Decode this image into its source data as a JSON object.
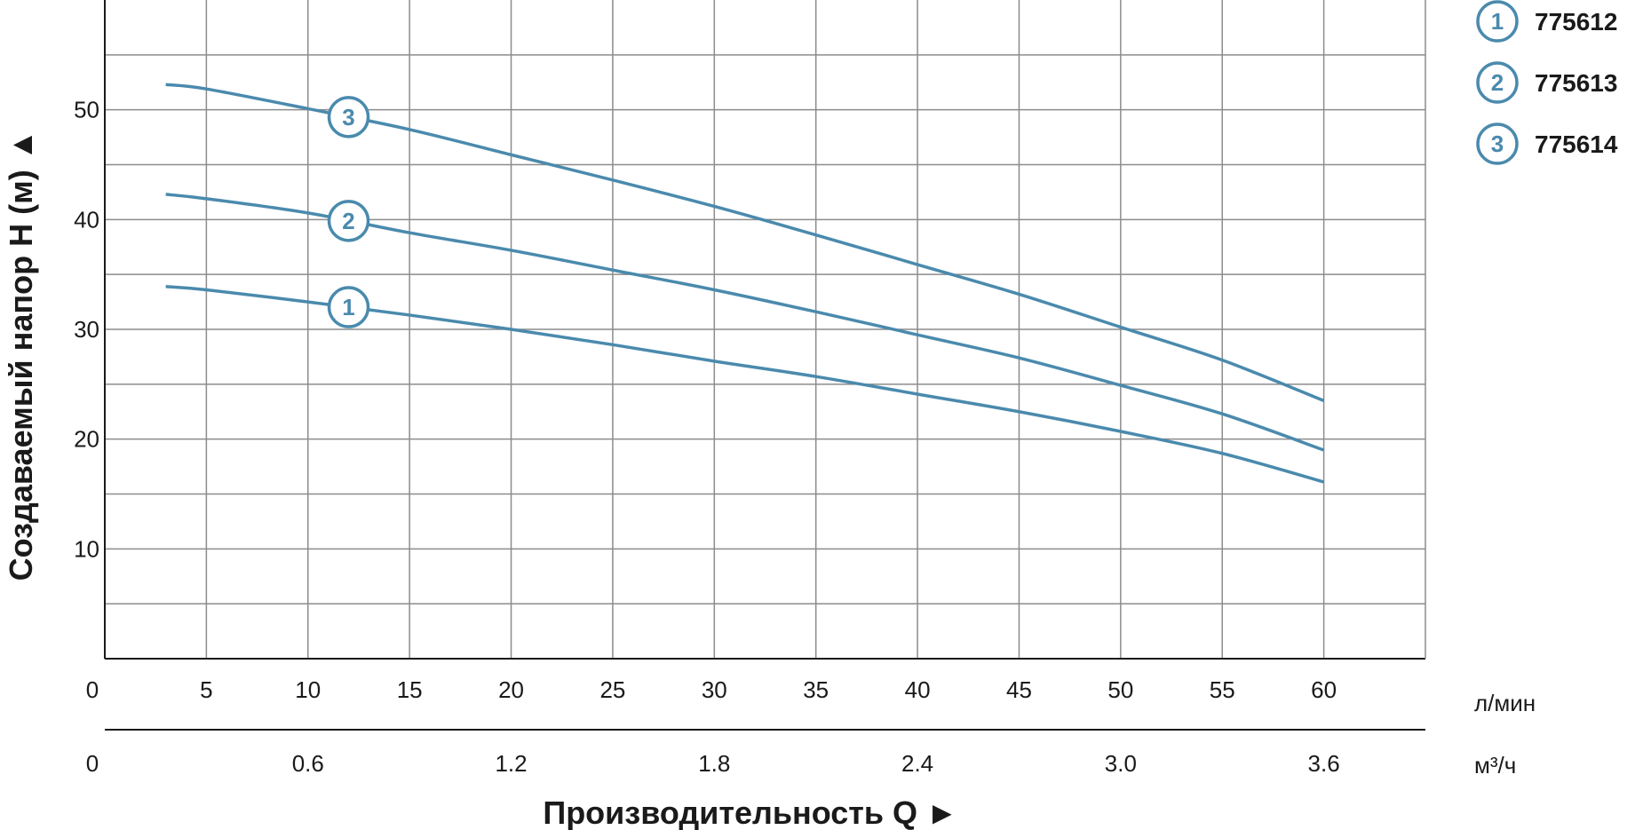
{
  "chart_data": {
    "type": "line",
    "ylabel": "Создаваемый напор H (м) ▲",
    "xlabel": "Производительность Q ►",
    "x_unit_primary": "л/мин",
    "x_unit_secondary": "м³/ч",
    "xlim": [
      0,
      65
    ],
    "ylim": [
      0,
      60
    ],
    "x_ticks": [
      0,
      5,
      10,
      15,
      20,
      25,
      30,
      35,
      40,
      45,
      50,
      55,
      60
    ],
    "x_tick_labels": [
      "0",
      "5",
      "10",
      "15",
      "20",
      "25",
      "30",
      "35",
      "40",
      "45",
      "50",
      "55",
      "60"
    ],
    "x2_ticks": [
      0,
      0.6,
      1.2,
      1.8,
      2.4,
      3.0,
      3.6
    ],
    "x2_tick_labels": [
      "0",
      "0.6",
      "1.2",
      "1.8",
      "2.4",
      "3.0",
      "3.6"
    ],
    "y_ticks": [
      10,
      20,
      30,
      40,
      50
    ],
    "y_tick_labels": [
      "10",
      "20",
      "30",
      "40",
      "50"
    ],
    "grid": true,
    "legend_position": "top-right",
    "line_color": "#4a8aad",
    "series": [
      {
        "name": "775612",
        "marker": "1",
        "marker_at": 12,
        "x": [
          3,
          5,
          10,
          15,
          20,
          25,
          30,
          35,
          40,
          45,
          50,
          55,
          60
        ],
        "y": [
          33.9,
          33.6,
          32.5,
          31.3,
          30.0,
          28.6,
          27.1,
          25.7,
          24.1,
          22.5,
          20.7,
          18.7,
          16.1
        ]
      },
      {
        "name": "775613",
        "marker": "2",
        "marker_at": 12,
        "x": [
          3,
          5,
          10,
          15,
          20,
          25,
          30,
          35,
          40,
          45,
          50,
          55,
          60
        ],
        "y": [
          42.3,
          41.9,
          40.6,
          38.8,
          37.2,
          35.4,
          33.6,
          31.6,
          29.5,
          27.4,
          24.9,
          22.3,
          19.0
        ]
      },
      {
        "name": "775614",
        "marker": "3",
        "marker_at": 12,
        "x": [
          3,
          5,
          10,
          15,
          20,
          25,
          30,
          35,
          40,
          45,
          50,
          55,
          60
        ],
        "y": [
          52.3,
          51.9,
          50.1,
          48.2,
          45.9,
          43.6,
          41.2,
          38.6,
          35.9,
          33.2,
          30.2,
          27.2,
          23.5
        ]
      }
    ]
  }
}
